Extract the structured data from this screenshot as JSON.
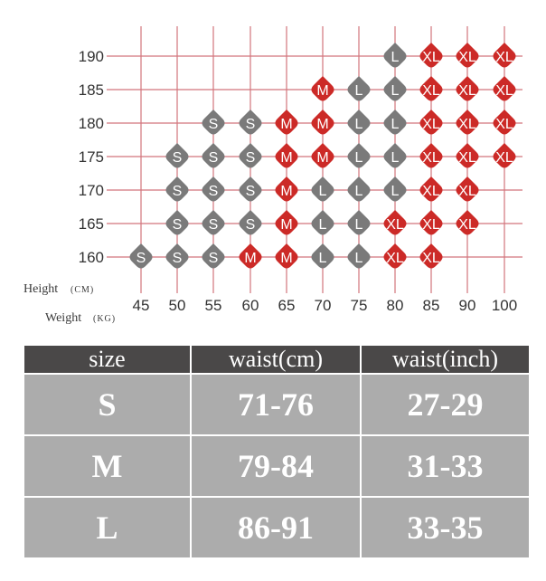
{
  "chart_data": {
    "type": "scatter",
    "x_axis": {
      "title": "Weight",
      "unit": "(KG)",
      "ticks": [
        "45",
        "50",
        "55",
        "60",
        "65",
        "70",
        "75",
        "80",
        "85",
        "90",
        "100"
      ]
    },
    "y_axis": {
      "title": "Height",
      "unit": "(CM)",
      "ticks": [
        "190",
        "185",
        "180",
        "175",
        "170",
        "165",
        "160"
      ]
    },
    "colors": {
      "S": "#7a7a7a",
      "M": "#cc2a27",
      "L": "#7a7a7a",
      "XL": "#cc2a27",
      "grid": "#d2747c"
    },
    "points": [
      {
        "w": "45",
        "h": "160",
        "size": "S"
      },
      {
        "w": "50",
        "h": "160",
        "size": "S"
      },
      {
        "w": "55",
        "h": "160",
        "size": "S"
      },
      {
        "w": "60",
        "h": "160",
        "size": "M"
      },
      {
        "w": "65",
        "h": "160",
        "size": "M"
      },
      {
        "w": "70",
        "h": "160",
        "size": "L"
      },
      {
        "w": "75",
        "h": "160",
        "size": "L"
      },
      {
        "w": "80",
        "h": "160",
        "size": "XL"
      },
      {
        "w": "85",
        "h": "160",
        "size": "XL"
      },
      {
        "w": "50",
        "h": "165",
        "size": "S"
      },
      {
        "w": "55",
        "h": "165",
        "size": "S"
      },
      {
        "w": "60",
        "h": "165",
        "size": "S"
      },
      {
        "w": "65",
        "h": "165",
        "size": "M"
      },
      {
        "w": "70",
        "h": "165",
        "size": "L"
      },
      {
        "w": "75",
        "h": "165",
        "size": "L"
      },
      {
        "w": "80",
        "h": "165",
        "size": "XL"
      },
      {
        "w": "85",
        "h": "165",
        "size": "XL"
      },
      {
        "w": "90",
        "h": "165",
        "size": "XL"
      },
      {
        "w": "50",
        "h": "170",
        "size": "S"
      },
      {
        "w": "55",
        "h": "170",
        "size": "S"
      },
      {
        "w": "60",
        "h": "170",
        "size": "S"
      },
      {
        "w": "65",
        "h": "170",
        "size": "M"
      },
      {
        "w": "70",
        "h": "170",
        "size": "L"
      },
      {
        "w": "75",
        "h": "170",
        "size": "L"
      },
      {
        "w": "80",
        "h": "170",
        "size": "L"
      },
      {
        "w": "85",
        "h": "170",
        "size": "XL"
      },
      {
        "w": "90",
        "h": "170",
        "size": "XL"
      },
      {
        "w": "50",
        "h": "175",
        "size": "S"
      },
      {
        "w": "55",
        "h": "175",
        "size": "S"
      },
      {
        "w": "60",
        "h": "175",
        "size": "S"
      },
      {
        "w": "65",
        "h": "175",
        "size": "M"
      },
      {
        "w": "70",
        "h": "175",
        "size": "M"
      },
      {
        "w": "75",
        "h": "175",
        "size": "L"
      },
      {
        "w": "80",
        "h": "175",
        "size": "L"
      },
      {
        "w": "85",
        "h": "175",
        "size": "XL"
      },
      {
        "w": "90",
        "h": "175",
        "size": "XL"
      },
      {
        "w": "100",
        "h": "175",
        "size": "XL"
      },
      {
        "w": "55",
        "h": "180",
        "size": "S"
      },
      {
        "w": "60",
        "h": "180",
        "size": "S"
      },
      {
        "w": "65",
        "h": "180",
        "size": "M"
      },
      {
        "w": "70",
        "h": "180",
        "size": "M"
      },
      {
        "w": "75",
        "h": "180",
        "size": "L"
      },
      {
        "w": "80",
        "h": "180",
        "size": "L"
      },
      {
        "w": "85",
        "h": "180",
        "size": "XL"
      },
      {
        "w": "90",
        "h": "180",
        "size": "XL"
      },
      {
        "w": "100",
        "h": "180",
        "size": "XL"
      },
      {
        "w": "70",
        "h": "185",
        "size": "M"
      },
      {
        "w": "75",
        "h": "185",
        "size": "L"
      },
      {
        "w": "80",
        "h": "185",
        "size": "L"
      },
      {
        "w": "85",
        "h": "185",
        "size": "XL"
      },
      {
        "w": "90",
        "h": "185",
        "size": "XL"
      },
      {
        "w": "100",
        "h": "185",
        "size": "XL"
      },
      {
        "w": "80",
        "h": "190",
        "size": "L"
      },
      {
        "w": "85",
        "h": "190",
        "size": "XL"
      },
      {
        "w": "90",
        "h": "190",
        "size": "XL"
      },
      {
        "w": "100",
        "h": "190",
        "size": "XL"
      }
    ]
  },
  "size_table": {
    "headers": [
      "size",
      "waist(cm)",
      "waist(inch)"
    ],
    "rows": [
      {
        "size": "S",
        "waist_cm": "71-76",
        "waist_inch": "27-29"
      },
      {
        "size": "M",
        "waist_cm": "79-84",
        "waist_inch": "31-33"
      },
      {
        "size": "L",
        "waist_cm": "86-91",
        "waist_inch": "33-35"
      }
    ]
  }
}
